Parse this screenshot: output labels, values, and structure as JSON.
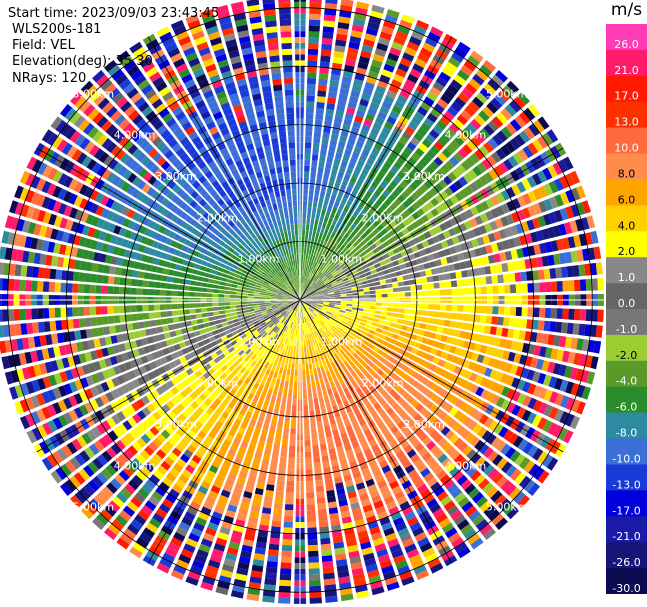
{
  "header": {
    "start_time": "Start time: 2023/09/03 23:43:45",
    "instrument": "WLS200s-181",
    "field": "Field: VEL",
    "elevation": "Elevation(deg): 35.30",
    "nrays": "NRays: 120"
  },
  "chart_data": {
    "type": "ppi",
    "field": "VEL",
    "units": "m/s",
    "n_rays": 120,
    "elevation_deg": 35.3,
    "range_rings_km": [
      1.0,
      2.0,
      3.0,
      4.0,
      5.0
    ],
    "range_ring_labels": [
      "1.00km",
      "2.00km",
      "3.00km",
      "4.00km",
      "5.00km"
    ],
    "max_range_km": 5.2,
    "spoke_interval_deg": 30,
    "colorbar": {
      "levels": [
        -30.0,
        -26.0,
        -21.0,
        -17.0,
        -13.0,
        -10.0,
        -8.0,
        -6.0,
        -4.0,
        -2.0,
        -1.0,
        0.0,
        1.0,
        2.0,
        4.0,
        6.0,
        8.0,
        10.0,
        13.0,
        17.0,
        21.0,
        26.0
      ],
      "tick_labels": [
        "-30.0",
        "-26.0",
        "-21.0",
        "-17.0",
        "-13.0",
        "-10.0",
        "-8.0",
        "-6.0",
        "-4.0",
        "-2.0",
        "-1.0",
        "0.0",
        "1.0",
        "2.0",
        "4.0",
        "6.0",
        "8.0",
        "10.0",
        "13.0",
        "17.0",
        "21.0",
        "26.0"
      ],
      "colors": [
        "#0a0a50",
        "#15157a",
        "#1a1aa8",
        "#0000dd",
        "#1a3ad8",
        "#3b6fd6",
        "#2e8aa0",
        "#2a8c2a",
        "#5a9a2a",
        "#9acd32",
        "#777777",
        "#666666",
        "#888888",
        "#ffff00",
        "#ffd000",
        "#ffa500",
        "#ff8c4a",
        "#ff6a3c",
        "#ff3000",
        "#ff1a00",
        "#ff1a6a",
        "#ff3cb4"
      ]
    }
  }
}
